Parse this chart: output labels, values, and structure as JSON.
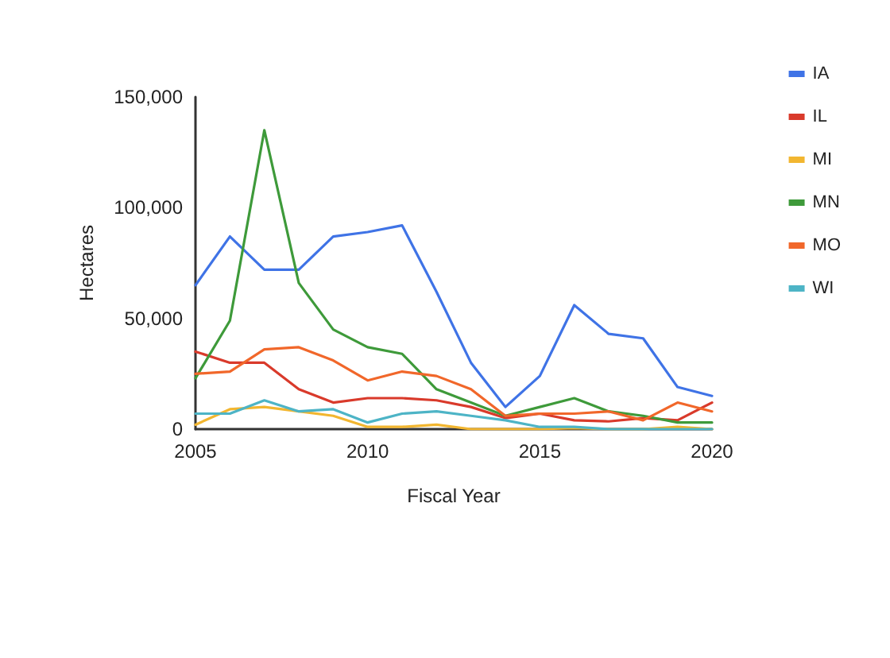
{
  "chart_data": {
    "type": "line",
    "xlabel": "Fiscal Year",
    "ylabel": "Hectares",
    "x": [
      2005,
      2006,
      2007,
      2008,
      2009,
      2010,
      2011,
      2012,
      2013,
      2014,
      2015,
      2016,
      2017,
      2018,
      2019,
      2020
    ],
    "xlim": [
      2005,
      2020
    ],
    "xticks": [
      2005,
      2010,
      2015,
      2020
    ],
    "ylim": [
      0,
      150000
    ],
    "yticks": [
      {
        "value": 0,
        "label": "0"
      },
      {
        "value": 50000,
        "label": "50,000"
      },
      {
        "value": 100000,
        "label": "100,000"
      },
      {
        "value": 150000,
        "label": "150,000"
      }
    ],
    "grid": false,
    "legend": "top right",
    "marker": "none",
    "line_style": "solid",
    "series": [
      {
        "name": "IA",
        "color": "#3f73e6",
        "values": [
          65000,
          87000,
          72000,
          72000,
          87000,
          89000,
          92000,
          62000,
          30000,
          10000,
          24000,
          56000,
          43000,
          41000,
          19000,
          15000
        ]
      },
      {
        "name": "IL",
        "color": "#d93a2b",
        "values": [
          35000,
          30000,
          30000,
          18000,
          12000,
          14000,
          14000,
          13000,
          10000,
          5000,
          7000,
          4000,
          3500,
          5000,
          4000,
          12000
        ]
      },
      {
        "name": "MI",
        "color": "#f2b630",
        "values": [
          2000,
          9000,
          10000,
          8000,
          6000,
          1000,
          1000,
          2000,
          0,
          0,
          0,
          500,
          0,
          0,
          1000,
          0
        ]
      },
      {
        "name": "MN",
        "color": "#3e9a3a",
        "values": [
          23000,
          49000,
          135000,
          66000,
          45000,
          37000,
          34000,
          18000,
          12000,
          6000,
          10000,
          14000,
          8000,
          6000,
          3000,
          3000
        ]
      },
      {
        "name": "MO",
        "color": "#f1672a",
        "values": [
          25000,
          26000,
          36000,
          37000,
          31000,
          22000,
          26000,
          24000,
          18000,
          6000,
          7000,
          7000,
          8000,
          4000,
          12000,
          8000
        ]
      },
      {
        "name": "WI",
        "color": "#4db4c6",
        "values": [
          7000,
          7000,
          13000,
          8000,
          9000,
          3000,
          7000,
          8000,
          6000,
          4000,
          1000,
          1000,
          0,
          0,
          0,
          0
        ]
      }
    ]
  }
}
